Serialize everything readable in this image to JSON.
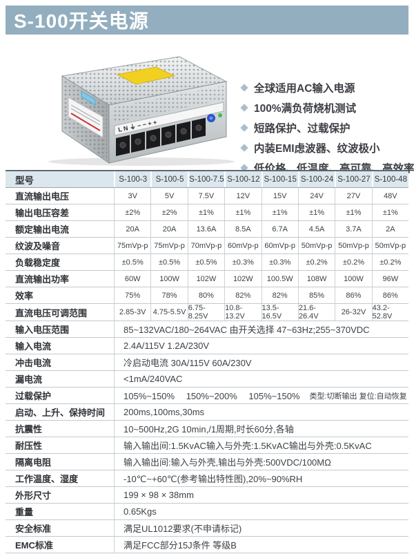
{
  "page": {
    "title": "S-100开关电源"
  },
  "colors": {
    "title_bar": "#92aebf",
    "table_header_bg": "#dce7ed",
    "bullet_diamond": "#a9bfce",
    "row_line": "#c3c9cc"
  },
  "features": {
    "items": [
      "全球适用AC输入电源",
      "100%满负荷烧机测试",
      "短路保护、过载保护",
      "内装EMI虑波器、纹波极小",
      "低价格、低温度、高可靠、高效率"
    ]
  },
  "product_image": {
    "label_text": "L N",
    "description": "S-100 开关电源产品照片"
  },
  "table": {
    "header_label": "型号",
    "models": [
      "S-100-3",
      "S-100-5",
      "S-100-7.5",
      "S-100-12",
      "S-100-15",
      "S-100-24",
      "S-100-27",
      "S-100-48"
    ],
    "matrix_rows": [
      {
        "label": "直流输出电压",
        "values": [
          "3V",
          "5V",
          "7.5V",
          "12V",
          "15V",
          "24V",
          "27V",
          "48V"
        ]
      },
      {
        "label": "输出电压容差",
        "values": [
          "±2%",
          "±2%",
          "±1%",
          "±1%",
          "±1%",
          "±1%",
          "±1%",
          "±1%"
        ]
      },
      {
        "label": "额定输出电流",
        "values": [
          "20A",
          "20A",
          "13.6A",
          "8.5A",
          "6.7A",
          "4.5A",
          "3.7A",
          "2A"
        ]
      },
      {
        "label": "纹波及噪音",
        "values": [
          "75mVp-p",
          "75mVp-p",
          "70mVp-p",
          "60mVp-p",
          "60mVp-p",
          "50mVp-p",
          "50mVp-p",
          "50mVp-p"
        ]
      },
      {
        "label": "负载稳定度",
        "values": [
          "±0.5%",
          "±0.5%",
          "±0.5%",
          "±0.3%",
          "±0.3%",
          "±0.2%",
          "±0.2%",
          "±0.2%"
        ]
      },
      {
        "label": "直流输出功率",
        "values": [
          "60W",
          "100W",
          "102W",
          "102W",
          "100.5W",
          "108W",
          "100W",
          "96W"
        ]
      },
      {
        "label": "效率",
        "values": [
          "75%",
          "78%",
          "80%",
          "82%",
          "82%",
          "85%",
          "86%",
          "86%"
        ]
      },
      {
        "label": "直流电压可调范围",
        "values": [
          "2.85-3V",
          "4.75-5.5V",
          "6.75-8.25V",
          "10.8-13.2V",
          "13.5-16.5V",
          "21.6-26.4V",
          "26-32V",
          "43.2-52.8V"
        ]
      }
    ],
    "full_rows": [
      {
        "label": "输入电压范围",
        "value": "85~132VAC/180~264VAC 由开关选择 47~63Hz;255~370VDC"
      },
      {
        "label": "输入电流",
        "value": "2.4A/115V 1.2A/230V"
      },
      {
        "label": "冲击电流",
        "value": "冷启动电流 30A/115V 60A/230V"
      },
      {
        "label": "漏电流",
        "value": "<1mA/240VAC"
      },
      {
        "label": "过载保护",
        "value": "105%~150%　 150%~200%　 105%~150%",
        "note": "类型:切断输出 复位:自动恢复"
      },
      {
        "label": "启动、上升、保持时间",
        "value": "200ms,100ms,30ms"
      },
      {
        "label": "抗震性",
        "value": "10~500Hz,2G 10min,/1周期,时长60分,各轴"
      },
      {
        "label": "耐压性",
        "value": "输入输出间:1.5KvAC输入与外壳:1.5KvAC输出与外壳:0.5KvAC"
      },
      {
        "label": "隔离电阻",
        "value": "输入输出间:输入与外壳,输出与外壳:500VDC/100MΩ"
      },
      {
        "label": "工作温度、湿度",
        "value": "-10℃~+60℃(参考输出特性图),20%~90%RH"
      },
      {
        "label": "外形尺寸",
        "value": "199 × 98 × 38mm"
      },
      {
        "label": "重量",
        "value": "0.65Kgs"
      },
      {
        "label": "安全标准",
        "value": "满足UL1012要求(不申请标记)"
      },
      {
        "label": "EMC标准",
        "value": "满足FCC部分15J条件 等级B"
      }
    ]
  }
}
